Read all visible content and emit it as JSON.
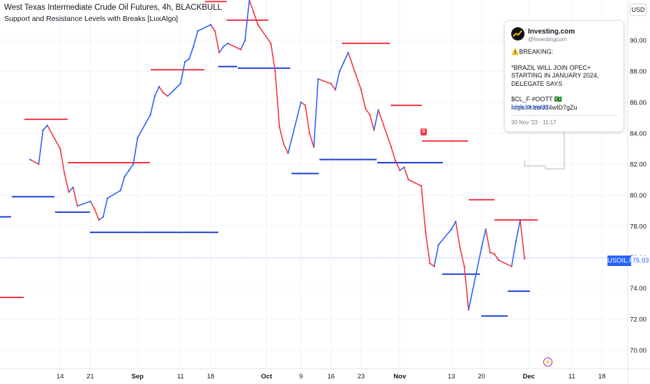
{
  "header": {
    "title": "West Texas Intermediate Crude Oil Futures, 4h, BLACKBULL",
    "indicator": "Support and Resistance Levels with Breaks [LuxAlgo]",
    "currency": "USD"
  },
  "tweet": {
    "name": "Investing.com",
    "handle": "@Investingcom",
    "line1": "⚠️BREAKING:",
    "line2": "*BRAZIL WILL JOIN OPEC+ STARTING IN JANUARY 2024, DELEGATE SAYS",
    "line3": "$CL_F #OOTT 🇧🇷 https://t.co/J34wID7gZu",
    "link": "Link to tweet",
    "time": "30 Nov '23 - 11:17"
  },
  "markers": {
    "break_label": "B",
    "event_icon": "lightning-icon"
  },
  "price_label": {
    "symbol": "USOIL.F",
    "value": "75.93"
  },
  "colors": {
    "resistance": "#f23645",
    "support": "#1e3ecf",
    "up": "#2962ff",
    "down": "#f23645",
    "accent": "#2962ff"
  },
  "chart_data": {
    "type": "line",
    "title": "West Texas Intermediate Crude Oil Futures, 4h, BLACKBULL",
    "xlabel": "",
    "ylabel": "",
    "ylim": [
      68.8,
      92.6
    ],
    "y_ticks": [
      70.0,
      72.0,
      74.0,
      76.0,
      78.0,
      80.0,
      82.0,
      84.0,
      86.0,
      88.0,
      90.0
    ],
    "x_ticks": [
      "14",
      "21",
      "Sep",
      "11",
      "18",
      "Oct",
      "9",
      "16",
      "23",
      "Nov",
      "13",
      "20",
      "Dec",
      "11",
      "18"
    ],
    "x_tick_dates": [
      "2023-08-14",
      "2023-08-21",
      "2023-09-01",
      "2023-09-11",
      "2023-09-18",
      "2023-10-01",
      "2023-10-09",
      "2023-10-16",
      "2023-10-23",
      "2023-11-01",
      "2023-11-13",
      "2023-11-20",
      "2023-12-01",
      "2023-12-11",
      "2023-12-18"
    ],
    "grid": true,
    "legend": "none",
    "series": [
      {
        "name": "",
        "x": [
          "2023-08-07",
          "2023-08-09",
          "2023-08-10",
          "2023-08-11",
          "2023-08-14",
          "2023-08-15",
          "2023-08-16",
          "2023-08-17",
          "2023-08-18",
          "2023-08-21",
          "2023-08-22",
          "2023-08-23",
          "2023-08-24",
          "2023-08-25",
          "2023-08-28",
          "2023-08-29",
          "2023-08-30",
          "2023-08-31",
          "2023-09-01",
          "2023-09-04",
          "2023-09-05",
          "2023-09-06",
          "2023-09-07",
          "2023-09-08",
          "2023-09-11",
          "2023-09-12",
          "2023-09-13",
          "2023-09-14",
          "2023-09-15",
          "2023-09-18",
          "2023-09-19",
          "2023-09-20",
          "2023-09-21",
          "2023-09-22",
          "2023-09-25",
          "2023-09-26",
          "2023-09-27",
          "2023-09-28",
          "2023-09-29",
          "2023-10-02",
          "2023-10-03",
          "2023-10-04",
          "2023-10-05",
          "2023-10-06",
          "2023-10-09",
          "2023-10-10",
          "2023-10-11",
          "2023-10-12",
          "2023-10-13",
          "2023-10-16",
          "2023-10-17",
          "2023-10-18",
          "2023-10-19",
          "2023-10-20",
          "2023-10-23",
          "2023-10-24",
          "2023-10-25",
          "2023-10-26",
          "2023-10-27",
          "2023-10-30",
          "2023-10-31",
          "2023-11-01",
          "2023-11-02",
          "2023-11-03",
          "2023-11-06",
          "2023-11-07",
          "2023-11-08",
          "2023-11-09",
          "2023-11-10",
          "2023-11-13",
          "2023-11-14",
          "2023-11-15",
          "2023-11-16",
          "2023-11-17",
          "2023-11-20",
          "2023-11-21",
          "2023-11-22",
          "2023-11-23",
          "2023-11-24",
          "2023-11-27",
          "2023-11-28",
          "2023-11-29",
          "2023-11-30"
        ],
        "values": [
          82.3,
          82.0,
          84.2,
          84.5,
          83.0,
          81.4,
          80.2,
          80.5,
          79.3,
          79.6,
          79.1,
          78.4,
          78.6,
          79.8,
          80.3,
          81.2,
          81.6,
          82.0,
          83.7,
          85.2,
          86.4,
          87.0,
          86.6,
          86.4,
          87.2,
          88.6,
          88.8,
          89.6,
          90.6,
          91.0,
          90.6,
          89.2,
          89.6,
          89.8,
          89.4,
          90.0,
          92.6,
          91.8,
          91.0,
          89.8,
          88.0,
          84.4,
          83.3,
          82.7,
          86.0,
          85.8,
          84.0,
          83.1,
          87.5,
          87.2,
          86.8,
          88.0,
          88.6,
          89.2,
          86.8,
          85.6,
          85.2,
          84.2,
          85.5,
          83.1,
          82.2,
          81.6,
          81.8,
          81.0,
          80.6,
          77.6,
          75.6,
          75.4,
          76.8,
          77.8,
          78.3,
          76.6,
          75.4,
          72.6,
          76.6,
          77.8,
          76.3,
          76.2,
          75.8,
          75.4,
          77.0,
          78.4,
          75.9
        ]
      }
    ],
    "resistance_levels": [
      84.9,
      82.1,
      88.1,
      92.5,
      91.3,
      89.8,
      85.8,
      83.5,
      79.7,
      78.4,
      73.4
    ],
    "support_levels": [
      78.6,
      79.9,
      78.9,
      77.6,
      88.3,
      88.2,
      81.4,
      82.3,
      82.1,
      74.9,
      73.8,
      72.2
    ],
    "last_price": 75.93
  }
}
